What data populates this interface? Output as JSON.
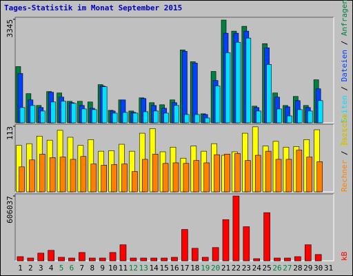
{
  "chart_data": {
    "type": "bar",
    "title": "Tages-Statistik im Monat September 2015",
    "categories": [
      "1",
      "2",
      "3",
      "4",
      "5",
      "6",
      "7",
      "8",
      "9",
      "10",
      "11",
      "12",
      "13",
      "14",
      "15",
      "16",
      "17",
      "18",
      "19",
      "20",
      "21",
      "22",
      "23",
      "24",
      "25",
      "26",
      "27",
      "28",
      "29",
      "30",
      "31"
    ],
    "category_colors": [
      "#000000",
      "#000000",
      "#000000",
      "#000000",
      "#008040",
      "#008040",
      "#000000",
      "#000000",
      "#000000",
      "#000000",
      "#000000",
      "#008040",
      "#008040",
      "#000000",
      "#000000",
      "#000000",
      "#000000",
      "#000000",
      "#008040",
      "#008040",
      "#000000",
      "#000000",
      "#000000",
      "#000000",
      "#000000",
      "#008040",
      "#008040",
      "#000000",
      "#000000",
      "#000000",
      "#000000"
    ],
    "separator": "/",
    "panels": [
      {
        "ylim": [
          0,
          3345
        ],
        "yticks": [
          3345
        ],
        "series": [
          {
            "name": "Anfragen",
            "color": "#008040",
            "values": [
              1818,
              943,
              561,
              1010,
              965,
              696,
              696,
              674,
              1235,
              404,
              741,
              382,
              808,
              651,
              584,
              741,
              2357,
              1975,
              292,
              1661,
              3322,
              2963,
              3120,
              539,
              2559,
              965,
              561,
              853,
              561,
              1392,
              null
            ]
          },
          {
            "name": "Dateien",
            "color": "#0040ff",
            "values": [
              1594,
              741,
              494,
              988,
              831,
              651,
              561,
              471,
              1190,
              382,
              741,
              337,
              786,
              561,
              471,
              651,
              2312,
              1931,
              269,
              1369,
              2896,
              2896,
              2963,
              494,
              2425,
              831,
              516,
              718,
              494,
              1100,
              null
            ]
          },
          {
            "name": "Seiten",
            "color": "#00e0ff",
            "values": [
              494,
              561,
              382,
              674,
              696,
              629,
              449,
              427,
              1167,
              314,
              337,
              314,
              359,
              382,
              314,
              561,
              269,
              269,
              157,
              1190,
              2267,
              2604,
              2739,
              382,
              1886,
              449,
              224,
              427,
              382,
              718,
              null
            ]
          }
        ]
      },
      {
        "ylim": [
          0,
          113
        ],
        "yticks": [
          113
        ],
        "series": [
          {
            "name": "Besuche",
            "color": "#ffff00",
            "values": [
              80,
              83,
              96,
              89,
              106,
              94,
              80,
              90,
              70,
              71,
              82,
              70,
              101,
              109,
              69,
              77,
              58,
              79,
              70,
              83,
              63,
              69,
              101,
              112,
              79,
              87,
              77,
              78,
              90,
              107,
              null
            ]
          },
          {
            "name": "Rechner",
            "color": "#ff8000",
            "values": [
              43,
              55,
              65,
              59,
              60,
              56,
              61,
              48,
              46,
              47,
              48,
              35,
              56,
              65,
              49,
              50,
              49,
              54,
              50,
              64,
              65,
              66,
              54,
              63,
              70,
              56,
              56,
              72,
              60,
              52,
              null
            ]
          }
        ]
      },
      {
        "ylim": [
          0,
          606037
        ],
        "yticks": [
          606037
        ],
        "series": [
          {
            "name": "kB",
            "color": "#ff0000",
            "values": [
              39000,
              26000,
              72000,
              98000,
              33000,
              26000,
              78000,
              26000,
              26000,
              78000,
              150000,
              26000,
              26000,
              26000,
              26000,
              33000,
              293000,
              117000,
              33000,
              124000,
              385000,
              606037,
              319000,
              20000,
              450000,
              26000,
              26000,
              39000,
              150000,
              59000,
              null
            ]
          }
        ]
      }
    ]
  }
}
